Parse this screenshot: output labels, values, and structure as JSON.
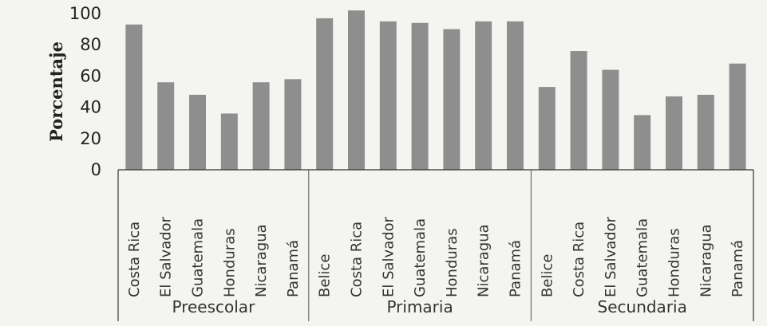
{
  "chart_data": {
    "type": "bar",
    "xlabel": "",
    "ylabel": "Porcentaje",
    "ylim": [
      0,
      100
    ],
    "yticks": [
      0,
      20,
      40,
      60,
      80,
      100
    ],
    "grid": false,
    "bar_color": "#8e8e8e",
    "groups": [
      {
        "name": "Preescolar",
        "categories": [
          "Costa Rica",
          "El Salvador",
          "Guatemala",
          "Honduras",
          "Nicaragua",
          "Panamá"
        ],
        "values": [
          93,
          56,
          48,
          36,
          56,
          58
        ]
      },
      {
        "name": "Primaria",
        "categories": [
          "Belice",
          "Costa Rica",
          "El Salvador",
          "Guatemala",
          "Honduras",
          "Nicaragua",
          "Panamá"
        ],
        "values": [
          97,
          102,
          95,
          94,
          90,
          95,
          95
        ]
      },
      {
        "name": "Secundaria",
        "categories": [
          "Belice",
          "Costa Rica",
          "El Salvador",
          "Guatemala",
          "Honduras",
          "Nicaragua",
          "Panamá"
        ],
        "values": [
          53,
          76,
          64,
          35,
          47,
          48,
          68
        ]
      }
    ]
  }
}
